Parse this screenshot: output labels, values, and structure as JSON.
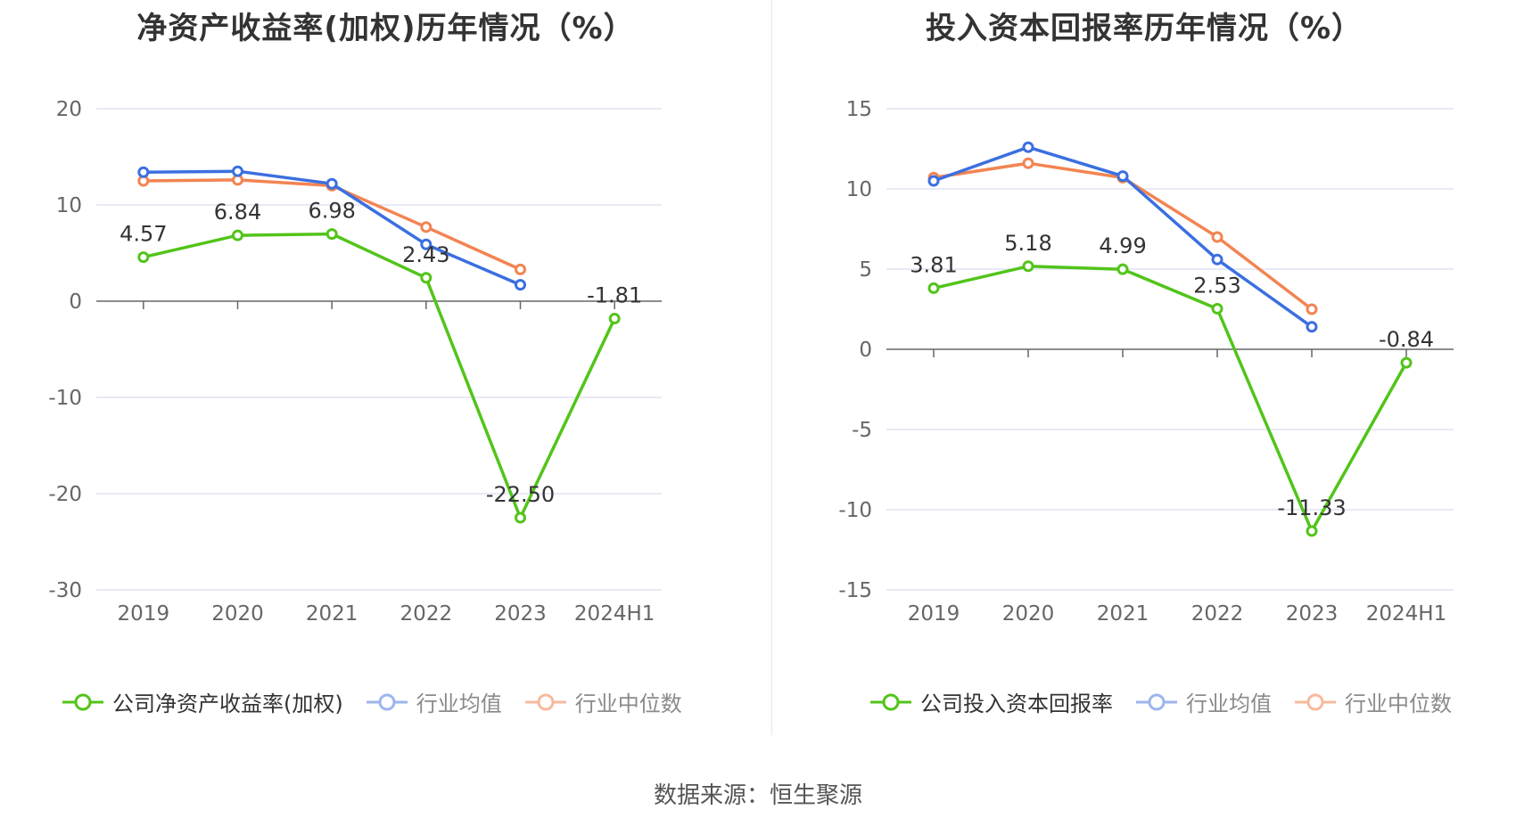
{
  "colors": {
    "company": "#52c41a",
    "avg": "#3b6fe0",
    "median": "#f28452",
    "grid": "#dfe3f0",
    "axis": "#666666",
    "label": "#333333"
  },
  "footer": {
    "source": "数据来源：恒生聚源"
  },
  "chart_data": [
    {
      "type": "line",
      "title": "净资产收益率(加权)历年情况（%）",
      "categories": [
        "2019",
        "2020",
        "2021",
        "2022",
        "2023",
        "2024H1"
      ],
      "ylim": [
        -30,
        20
      ],
      "yticks": [
        20,
        10,
        0,
        -10,
        -20,
        -30
      ],
      "ytick_labels": [
        "20",
        "10",
        "0",
        "-10",
        "-20",
        "-30"
      ],
      "series": [
        {
          "name": "公司净资产收益率(加权)",
          "key": "company",
          "values": [
            4.57,
            6.84,
            6.98,
            2.43,
            -22.5,
            -1.81
          ],
          "labels": [
            "4.57",
            "6.84",
            "6.98",
            "2.43",
            "-22.50",
            "-1.81"
          ]
        },
        {
          "name": "行业均值",
          "key": "avg",
          "values": [
            13.4,
            13.5,
            12.2,
            5.9,
            1.7,
            null
          ]
        },
        {
          "name": "行业中位数",
          "key": "median",
          "values": [
            12.5,
            12.6,
            12.0,
            7.7,
            3.3,
            null
          ]
        }
      ]
    },
    {
      "type": "line",
      "title": "投入资本回报率历年情况（%）",
      "categories": [
        "2019",
        "2020",
        "2021",
        "2022",
        "2023",
        "2024H1"
      ],
      "ylim": [
        -15,
        15
      ],
      "yticks": [
        15,
        10,
        5,
        0,
        -5,
        -10,
        -15
      ],
      "ytick_labels": [
        "15",
        "10",
        "5",
        "0",
        "-5",
        "-10",
        "-15"
      ],
      "series": [
        {
          "name": "公司投入资本回报率",
          "key": "company",
          "values": [
            3.81,
            5.18,
            4.99,
            2.53,
            -11.33,
            -0.84
          ],
          "labels": [
            "3.81",
            "5.18",
            "4.99",
            "2.53",
            "-11.33",
            "-0.84"
          ]
        },
        {
          "name": "行业均值",
          "key": "avg",
          "values": [
            10.5,
            12.6,
            10.8,
            5.6,
            1.4,
            null
          ]
        },
        {
          "name": "行业中位数",
          "key": "median",
          "values": [
            10.7,
            11.6,
            10.7,
            7.0,
            2.5,
            null
          ]
        }
      ]
    }
  ]
}
